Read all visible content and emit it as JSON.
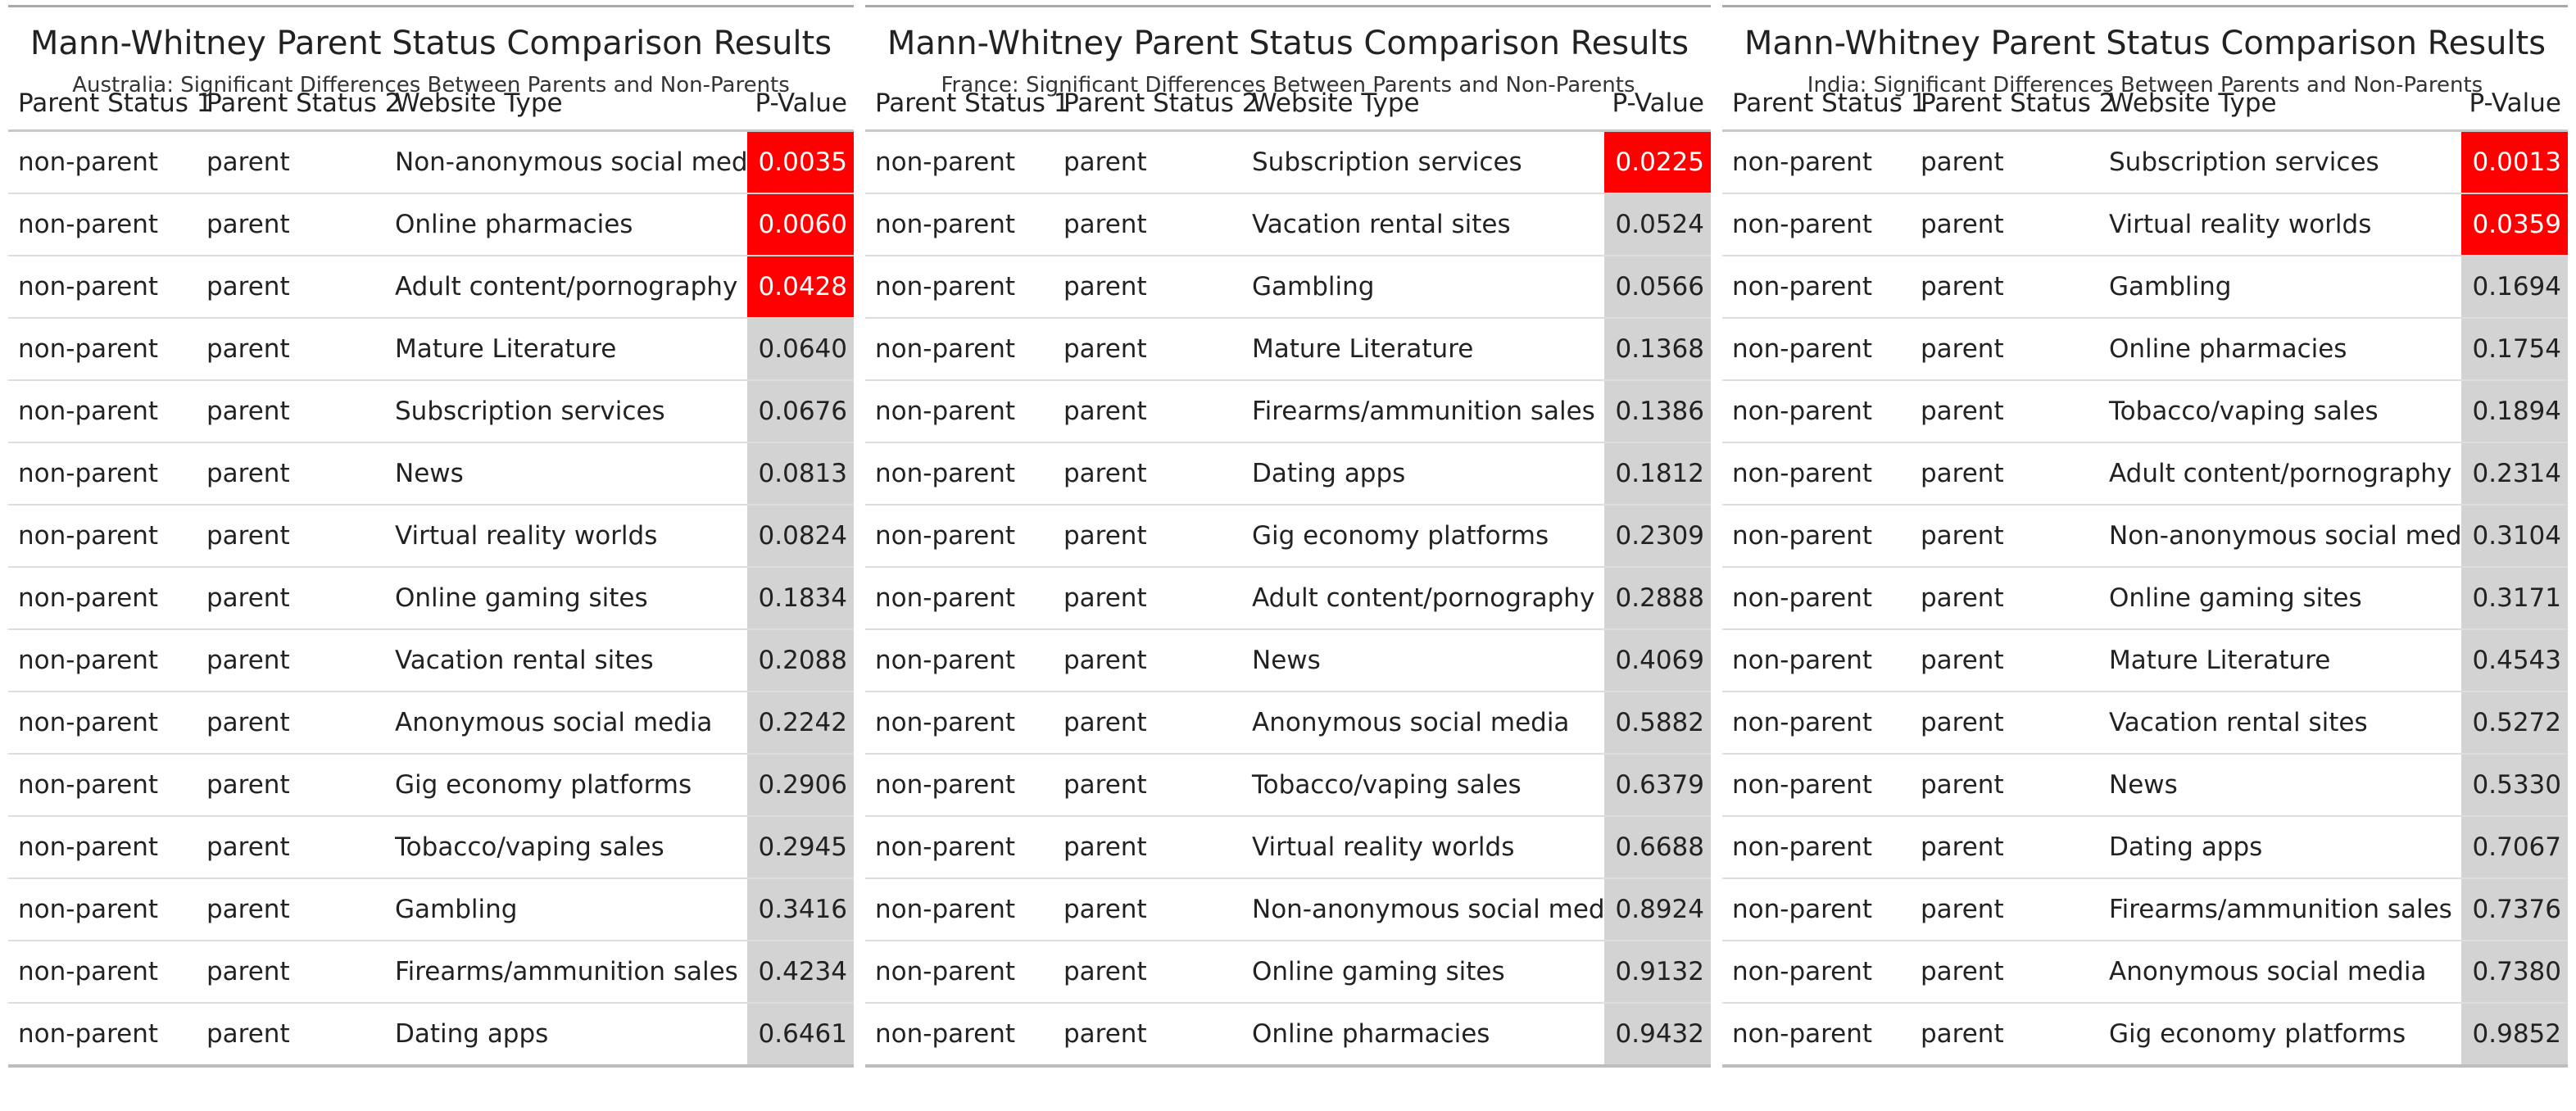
{
  "chart_data": [
    {
      "type": "table",
      "title": "Mann-Whitney Parent Status Comparison Results",
      "subtitle": "Australia: Significant Differences Between Parents and Non-Parents",
      "columns": [
        "Parent Status 1",
        "Parent Status 2",
        "Website Type",
        "P-Value"
      ],
      "significant_color": "#ff0000",
      "default_pvalue_color": "#d3d3d3",
      "rows": [
        {
          "status1": "non-parent",
          "status2": "parent",
          "website": "Non-anonymous social media",
          "p": "0.0035",
          "significant": true
        },
        {
          "status1": "non-parent",
          "status2": "parent",
          "website": "Online pharmacies",
          "p": "0.0060",
          "significant": true
        },
        {
          "status1": "non-parent",
          "status2": "parent",
          "website": "Adult content/pornography",
          "p": "0.0428",
          "significant": true
        },
        {
          "status1": "non-parent",
          "status2": "parent",
          "website": "Mature Literature",
          "p": "0.0640",
          "significant": false
        },
        {
          "status1": "non-parent",
          "status2": "parent",
          "website": "Subscription services",
          "p": "0.0676",
          "significant": false
        },
        {
          "status1": "non-parent",
          "status2": "parent",
          "website": "News",
          "p": "0.0813",
          "significant": false
        },
        {
          "status1": "non-parent",
          "status2": "parent",
          "website": "Virtual reality worlds",
          "p": "0.0824",
          "significant": false
        },
        {
          "status1": "non-parent",
          "status2": "parent",
          "website": "Online gaming sites",
          "p": "0.1834",
          "significant": false
        },
        {
          "status1": "non-parent",
          "status2": "parent",
          "website": "Vacation rental sites",
          "p": "0.2088",
          "significant": false
        },
        {
          "status1": "non-parent",
          "status2": "parent",
          "website": "Anonymous social media",
          "p": "0.2242",
          "significant": false
        },
        {
          "status1": "non-parent",
          "status2": "parent",
          "website": "Gig economy platforms",
          "p": "0.2906",
          "significant": false
        },
        {
          "status1": "non-parent",
          "status2": "parent",
          "website": "Tobacco/vaping sales",
          "p": "0.2945",
          "significant": false
        },
        {
          "status1": "non-parent",
          "status2": "parent",
          "website": "Gambling",
          "p": "0.3416",
          "significant": false
        },
        {
          "status1": "non-parent",
          "status2": "parent",
          "website": "Firearms/ammunition sales",
          "p": "0.4234",
          "significant": false
        },
        {
          "status1": "non-parent",
          "status2": "parent",
          "website": "Dating apps",
          "p": "0.6461",
          "significant": false
        }
      ]
    },
    {
      "type": "table",
      "title": "Mann-Whitney Parent Status Comparison Results",
      "subtitle": "France: Significant Differences Between Parents and Non-Parents",
      "columns": [
        "Parent Status 1",
        "Parent Status 2",
        "Website Type",
        "P-Value"
      ],
      "significant_color": "#ff0000",
      "default_pvalue_color": "#d3d3d3",
      "rows": [
        {
          "status1": "non-parent",
          "status2": "parent",
          "website": "Subscription services",
          "p": "0.0225",
          "significant": true
        },
        {
          "status1": "non-parent",
          "status2": "parent",
          "website": "Vacation rental sites",
          "p": "0.0524",
          "significant": false
        },
        {
          "status1": "non-parent",
          "status2": "parent",
          "website": "Gambling",
          "p": "0.0566",
          "significant": false
        },
        {
          "status1": "non-parent",
          "status2": "parent",
          "website": "Mature Literature",
          "p": "0.1368",
          "significant": false
        },
        {
          "status1": "non-parent",
          "status2": "parent",
          "website": "Firearms/ammunition sales",
          "p": "0.1386",
          "significant": false
        },
        {
          "status1": "non-parent",
          "status2": "parent",
          "website": "Dating apps",
          "p": "0.1812",
          "significant": false
        },
        {
          "status1": "non-parent",
          "status2": "parent",
          "website": "Gig economy platforms",
          "p": "0.2309",
          "significant": false
        },
        {
          "status1": "non-parent",
          "status2": "parent",
          "website": "Adult content/pornography",
          "p": "0.2888",
          "significant": false
        },
        {
          "status1": "non-parent",
          "status2": "parent",
          "website": "News",
          "p": "0.4069",
          "significant": false
        },
        {
          "status1": "non-parent",
          "status2": "parent",
          "website": "Anonymous social media",
          "p": "0.5882",
          "significant": false
        },
        {
          "status1": "non-parent",
          "status2": "parent",
          "website": "Tobacco/vaping sales",
          "p": "0.6379",
          "significant": false
        },
        {
          "status1": "non-parent",
          "status2": "parent",
          "website": "Virtual reality worlds",
          "p": "0.6688",
          "significant": false
        },
        {
          "status1": "non-parent",
          "status2": "parent",
          "website": "Non-anonymous social media",
          "p": "0.8924",
          "significant": false
        },
        {
          "status1": "non-parent",
          "status2": "parent",
          "website": "Online gaming sites",
          "p": "0.9132",
          "significant": false
        },
        {
          "status1": "non-parent",
          "status2": "parent",
          "website": "Online pharmacies",
          "p": "0.9432",
          "significant": false
        }
      ]
    },
    {
      "type": "table",
      "title": "Mann-Whitney Parent Status Comparison Results",
      "subtitle": "India: Significant Differences Between Parents and Non-Parents",
      "columns": [
        "Parent Status 1",
        "Parent Status 2",
        "Website Type",
        "P-Value"
      ],
      "significant_color": "#ff0000",
      "default_pvalue_color": "#d3d3d3",
      "rows": [
        {
          "status1": "non-parent",
          "status2": "parent",
          "website": "Subscription services",
          "p": "0.0013",
          "significant": true
        },
        {
          "status1": "non-parent",
          "status2": "parent",
          "website": "Virtual reality worlds",
          "p": "0.0359",
          "significant": true
        },
        {
          "status1": "non-parent",
          "status2": "parent",
          "website": "Gambling",
          "p": "0.1694",
          "significant": false
        },
        {
          "status1": "non-parent",
          "status2": "parent",
          "website": "Online pharmacies",
          "p": "0.1754",
          "significant": false
        },
        {
          "status1": "non-parent",
          "status2": "parent",
          "website": "Tobacco/vaping sales",
          "p": "0.1894",
          "significant": false
        },
        {
          "status1": "non-parent",
          "status2": "parent",
          "website": "Adult content/pornography",
          "p": "0.2314",
          "significant": false
        },
        {
          "status1": "non-parent",
          "status2": "parent",
          "website": "Non-anonymous social media",
          "p": "0.3104",
          "significant": false
        },
        {
          "status1": "non-parent",
          "status2": "parent",
          "website": "Online gaming sites",
          "p": "0.3171",
          "significant": false
        },
        {
          "status1": "non-parent",
          "status2": "parent",
          "website": "Mature Literature",
          "p": "0.4543",
          "significant": false
        },
        {
          "status1": "non-parent",
          "status2": "parent",
          "website": "Vacation rental sites",
          "p": "0.5272",
          "significant": false
        },
        {
          "status1": "non-parent",
          "status2": "parent",
          "website": "News",
          "p": "0.5330",
          "significant": false
        },
        {
          "status1": "non-parent",
          "status2": "parent",
          "website": "Dating apps",
          "p": "0.7067",
          "significant": false
        },
        {
          "status1": "non-parent",
          "status2": "parent",
          "website": "Firearms/ammunition sales",
          "p": "0.7376",
          "significant": false
        },
        {
          "status1": "non-parent",
          "status2": "parent",
          "website": "Anonymous social media",
          "p": "0.7380",
          "significant": false
        },
        {
          "status1": "non-parent",
          "status2": "parent",
          "website": "Gig economy platforms",
          "p": "0.9852",
          "significant": false
        }
      ]
    }
  ]
}
